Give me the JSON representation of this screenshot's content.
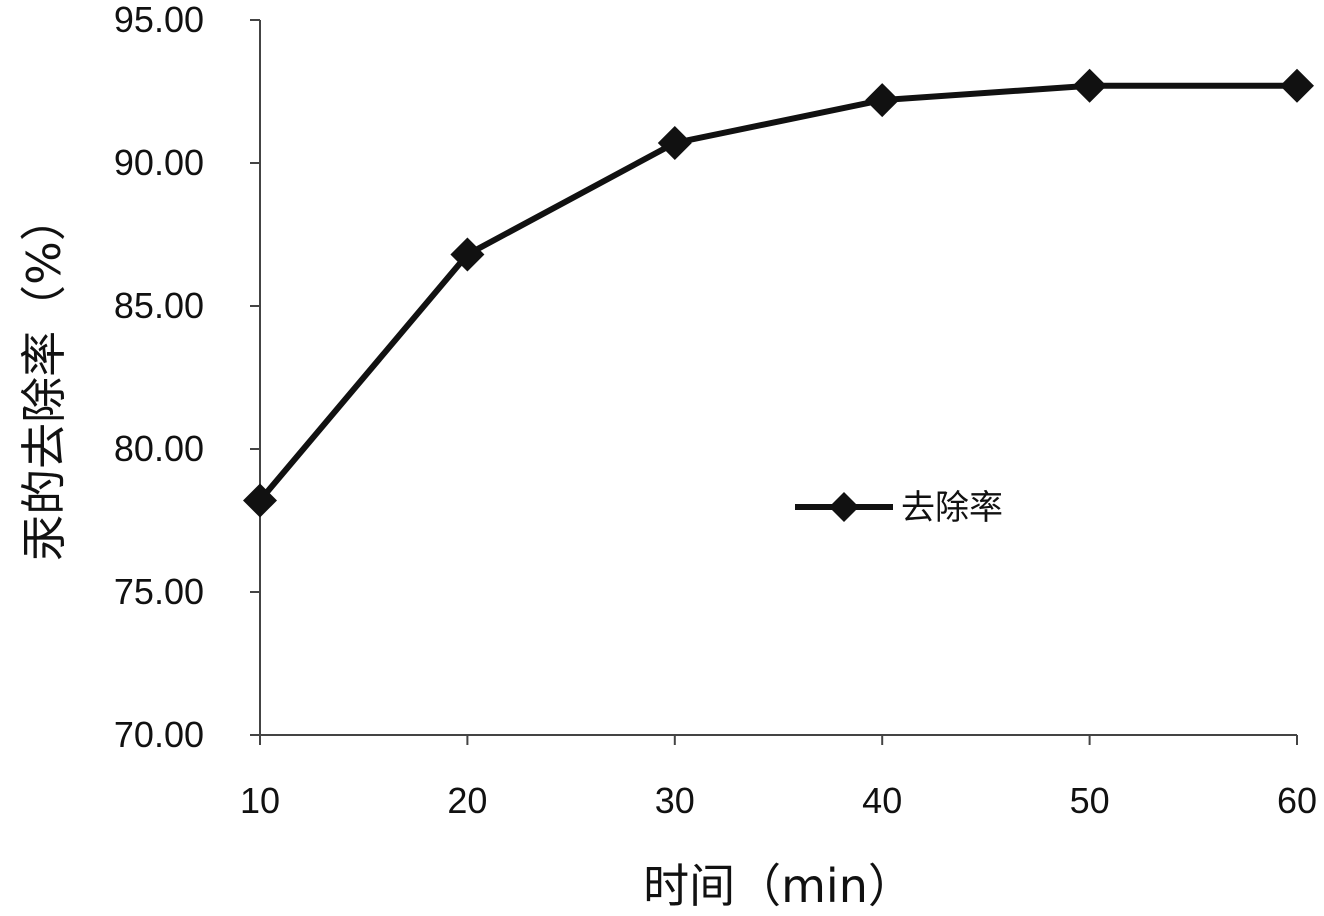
{
  "chart_data": {
    "type": "line",
    "x": [
      10,
      20,
      30,
      40,
      50,
      60
    ],
    "series": [
      {
        "name": "去除率",
        "values": [
          78.2,
          86.8,
          90.7,
          92.2,
          92.7,
          92.7
        ],
        "color": "#111111",
        "marker": "diamond"
      }
    ],
    "xlabel": "时间（min）",
    "ylabel": "汞的去除率（%）",
    "ylim": [
      70,
      95
    ],
    "x_ticks": [
      "10",
      "20",
      "30",
      "40",
      "50",
      "60"
    ],
    "y_ticks": [
      "70.00",
      "75.00",
      "80.00",
      "85.00",
      "90.00",
      "95.00"
    ],
    "grid": false,
    "legend_position": "right-center"
  }
}
